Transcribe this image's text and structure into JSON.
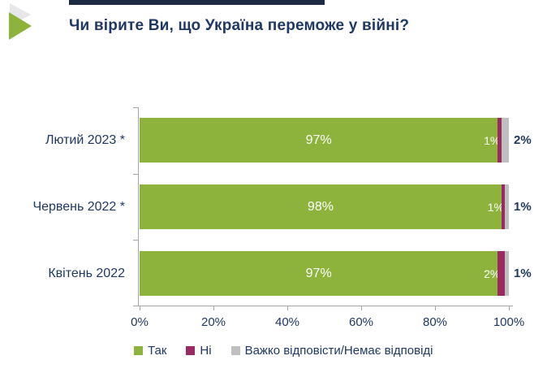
{
  "title": "Чи вірите Ви, що Україна переможе у війні?",
  "colors": {
    "accent_green": "#8DB33C",
    "accent_purple": "#9B2A63",
    "accent_gray": "#BFBFBF",
    "text_navy": "#1F3864",
    "top_strip": "#1C2940",
    "axis": "#A6A6A6"
  },
  "chart_data": {
    "type": "bar",
    "orientation": "horizontal",
    "stacked": true,
    "categories": [
      "Лютий 2023 *",
      "Червень 2022 *",
      "Квітень 2022"
    ],
    "series": [
      {
        "name": "Так",
        "color": "#8DB33C",
        "values": [
          97,
          98,
          97
        ]
      },
      {
        "name": "Ні",
        "color": "#9B2A63",
        "values": [
          1,
          1,
          2
        ]
      },
      {
        "name": "Важко відповісти/Немає відповіді",
        "color": "#BFBFBF",
        "values": [
          2,
          1,
          1
        ]
      }
    ],
    "rows": [
      {
        "label": "Лютий 2023 *",
        "main_label": "97%",
        "ni_label": "1%",
        "outside_label": "2%"
      },
      {
        "label": "Червень 2022 *",
        "main_label": "98%",
        "ni_label": "1%",
        "outside_label": "1%"
      },
      {
        "label": "Квітень 2022",
        "main_label": "97%",
        "ni_label": "2%",
        "outside_label": "1%"
      }
    ],
    "xticks": [
      "0%",
      "20%",
      "40%",
      "60%",
      "80%",
      "100%"
    ],
    "xlim": [
      0,
      100
    ],
    "grid": false,
    "legend_position": "bottom"
  }
}
